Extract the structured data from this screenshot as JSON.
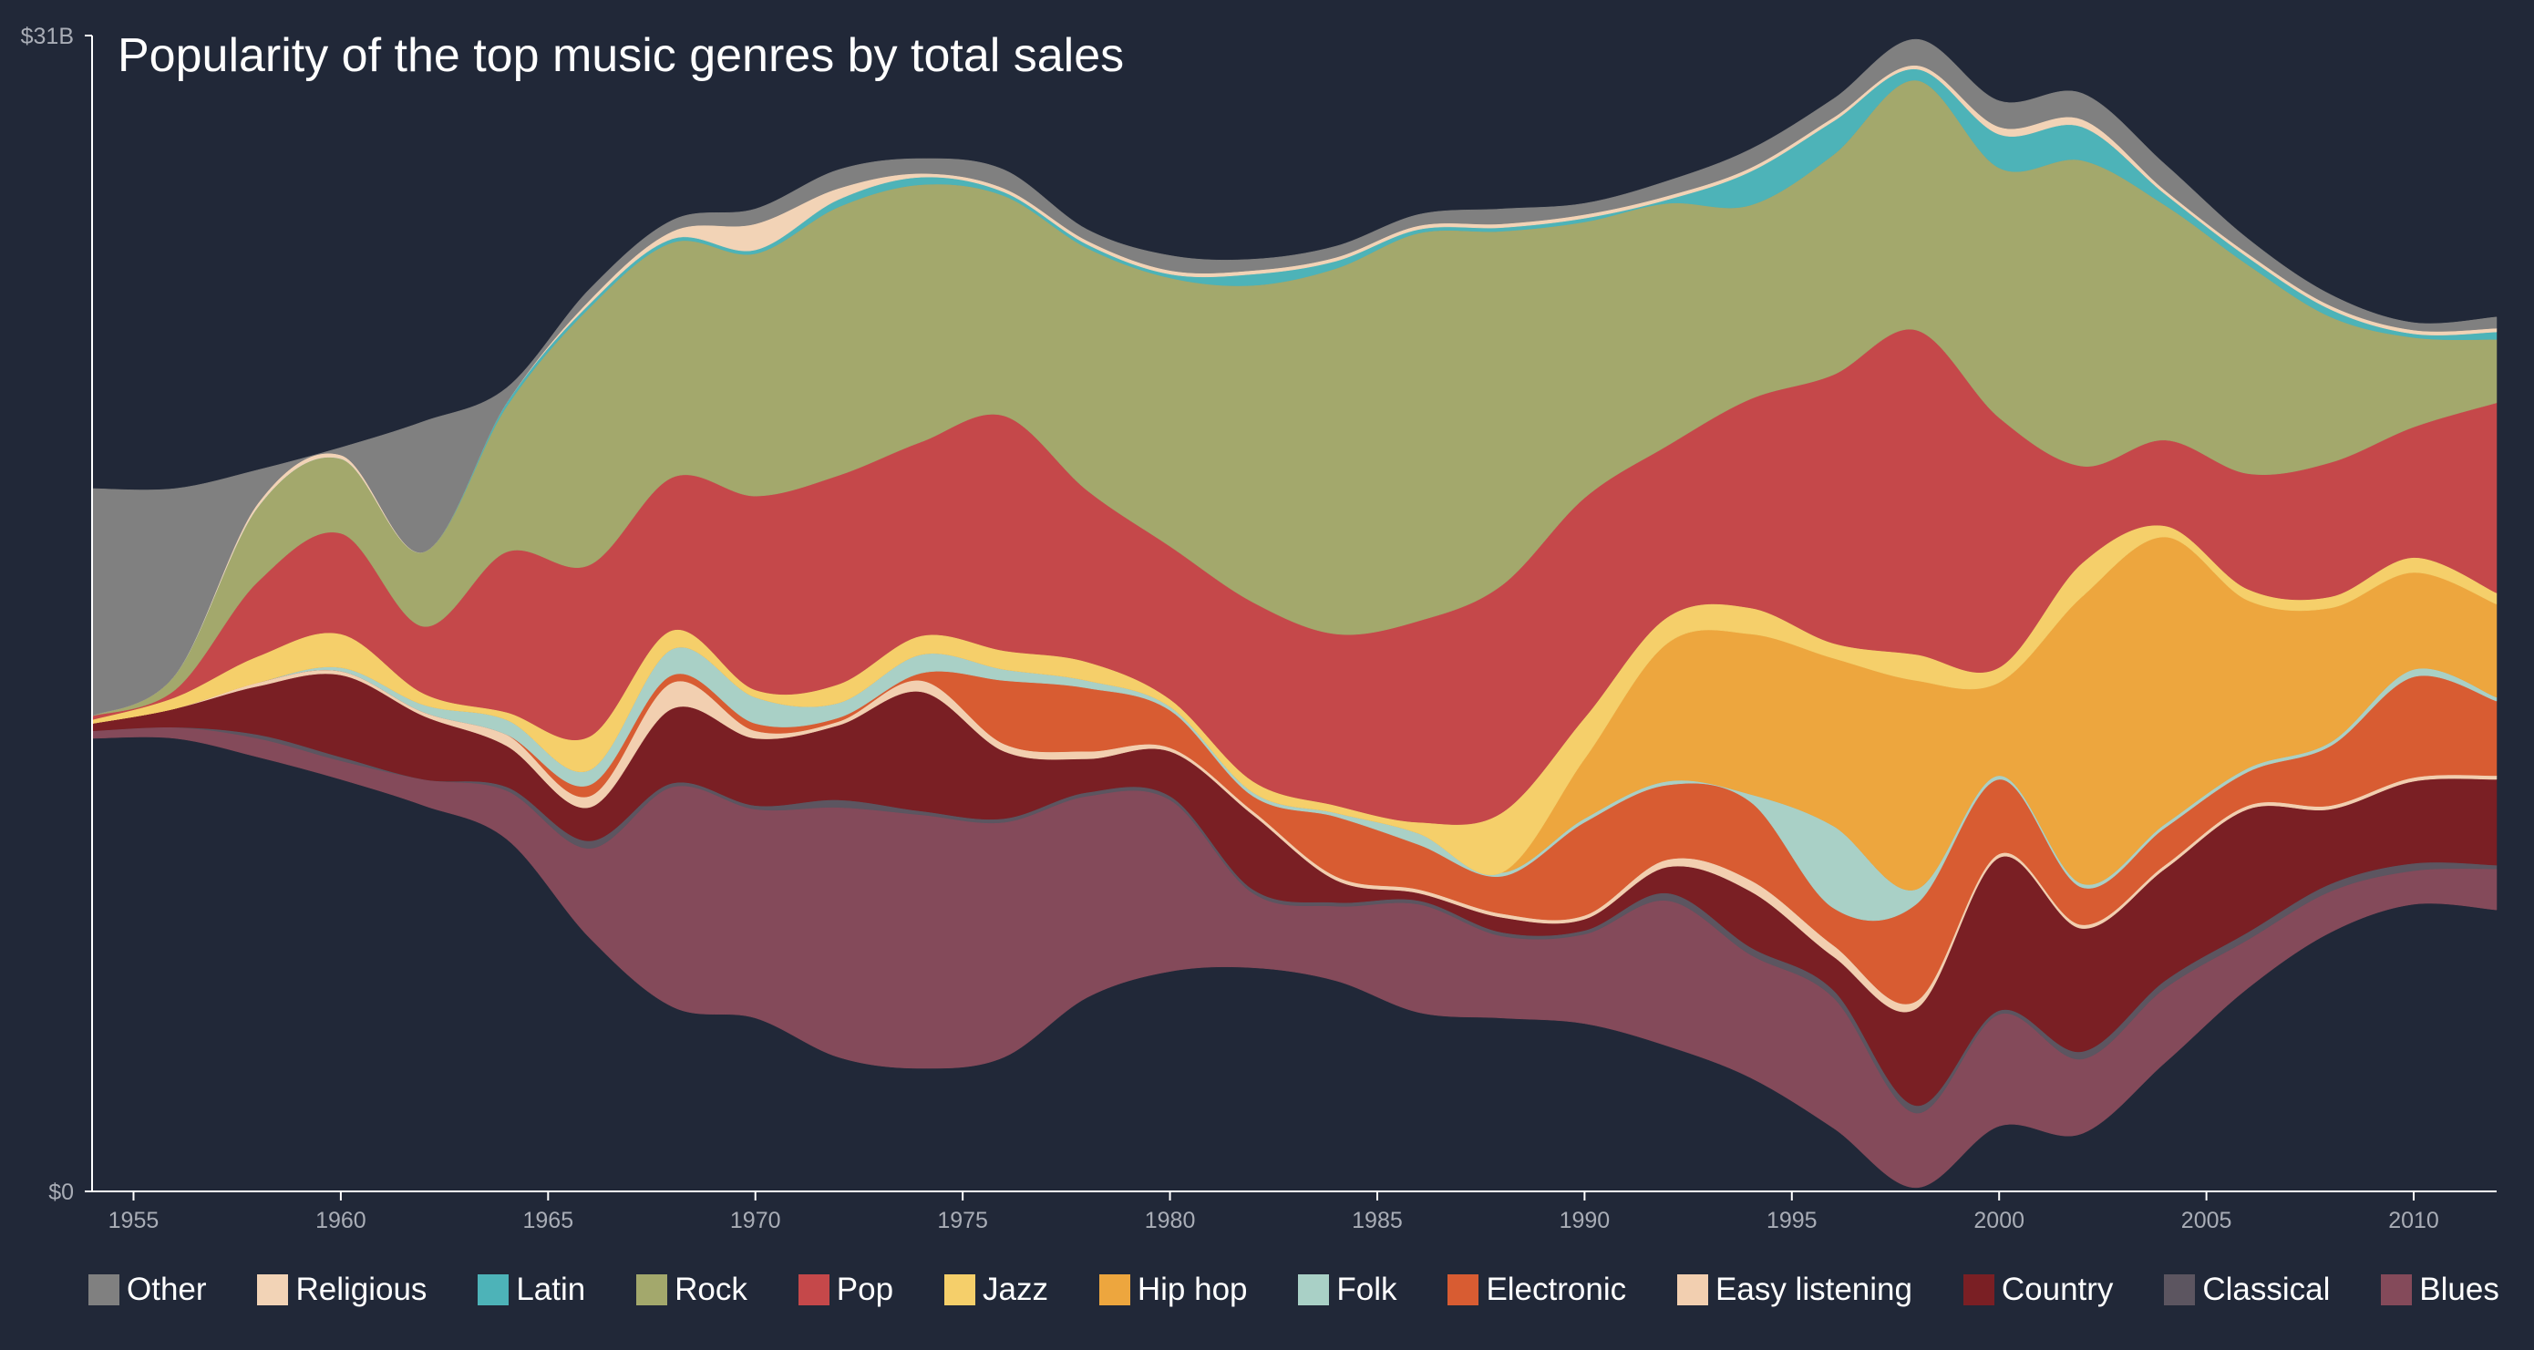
{
  "chart_data": {
    "type": "streamgraph",
    "title": "Popularity of the top music genres by total sales",
    "x": [
      1954,
      1956,
      1958,
      1960,
      1962,
      1964,
      1966,
      1968,
      1970,
      1972,
      1974,
      1976,
      1978,
      1980,
      1982,
      1984,
      1986,
      1988,
      1990,
      1992,
      1994,
      1996,
      1998,
      2000,
      2002,
      2004,
      2006,
      2008,
      2010,
      2012
    ],
    "xlim": [
      1954,
      2012
    ],
    "xticks": [
      1955,
      1960,
      1965,
      1970,
      1975,
      1980,
      1985,
      1990,
      1995,
      2000,
      2005,
      2010
    ],
    "ylim": [
      0,
      31
    ],
    "yticks": [
      {
        "value": 0,
        "label": "$0"
      },
      {
        "value": 31,
        "label": "$31B"
      }
    ],
    "series": [
      {
        "name": "Other",
        "color": "#808080",
        "values": [
          6.1,
          5.0,
          0.9,
          0.2,
          3.5,
          0.4,
          0.3,
          0.3,
          0.4,
          0.5,
          0.4,
          0.5,
          0.3,
          0.4,
          0.3,
          0.3,
          0.3,
          0.4,
          0.3,
          0.4,
          0.5,
          0.5,
          0.7,
          0.7,
          0.7,
          0.7,
          0.4,
          0.3,
          0.2,
          0.3
        ]
      },
      {
        "name": "Religious",
        "color": "#f2d3b6",
        "values": [
          0,
          0,
          0.1,
          0.1,
          0,
          0,
          0.1,
          0.2,
          0.7,
          0.3,
          0.1,
          0.1,
          0.1,
          0.1,
          0.1,
          0.1,
          0.1,
          0.1,
          0.1,
          0.1,
          0.1,
          0.1,
          0.1,
          0.2,
          0.2,
          0.1,
          0.1,
          0.1,
          0.1,
          0.1
        ]
      },
      {
        "name": "Latin",
        "color": "#4db3b8",
        "values": [
          0,
          0,
          0,
          0,
          0,
          0.1,
          0.1,
          0.1,
          0.1,
          0.2,
          0.2,
          0.1,
          0.1,
          0.1,
          0.3,
          0.2,
          0.1,
          0.1,
          0.1,
          0.1,
          0.9,
          0.9,
          0.3,
          0.9,
          0.9,
          0.3,
          0.2,
          0.2,
          0.1,
          0.2
        ]
      },
      {
        "name": "Rock",
        "color": "#a3a86c",
        "values": [
          0,
          0.4,
          2.0,
          2.0,
          2.0,
          3.9,
          6.9,
          6.3,
          6.5,
          7.2,
          6.9,
          5.9,
          6.5,
          7.2,
          8.5,
          9.8,
          10.4,
          9.5,
          7.4,
          6.5,
          5.2,
          5.9,
          6.7,
          6.7,
          8.2,
          6.3,
          5.6,
          3.9,
          2.4,
          1.7
        ]
      },
      {
        "name": "Pop",
        "color": "#c5484a",
        "values": [
          0.1,
          0.2,
          2.0,
          2.7,
          1.8,
          4.3,
          4.6,
          4.1,
          5.2,
          5.6,
          5.2,
          6.3,
          4.6,
          4.1,
          4.8,
          4.6,
          5.4,
          6.1,
          5.9,
          4.6,
          5.6,
          7.2,
          8.7,
          6.7,
          2.6,
          2.3,
          3.1,
          3.6,
          3.5,
          5.1
        ]
      },
      {
        "name": "Jazz",
        "color": "#f5cf6a",
        "values": [
          0.1,
          0.3,
          0.7,
          0.9,
          0.3,
          0.2,
          0.9,
          0.5,
          0.2,
          0.5,
          0.5,
          0.5,
          0.5,
          0.2,
          0.3,
          0.2,
          0.3,
          1.6,
          1.1,
          0.7,
          0.7,
          0.4,
          0.7,
          0.4,
          0.9,
          0.3,
          0.3,
          0.3,
          0.4,
          0.3
        ]
      },
      {
        "name": "Hip hop",
        "color": "#eda63e",
        "values": [
          0,
          0,
          0,
          0,
          0,
          0,
          0,
          0,
          0,
          0,
          0,
          0,
          0,
          0,
          0,
          0,
          0,
          0,
          1.6,
          3.7,
          4.3,
          4.5,
          5.6,
          2.5,
          7.7,
          7.7,
          4.5,
          3.6,
          2.6,
          2.5
        ]
      },
      {
        "name": "Folk",
        "color": "#a9d0c6",
        "values": [
          0,
          0,
          0,
          0.1,
          0.2,
          0.4,
          0.4,
          0.7,
          0.7,
          0.4,
          0.5,
          0.3,
          0.2,
          0.1,
          0.1,
          0.1,
          0.3,
          0.1,
          0.1,
          0.1,
          0.2,
          2.2,
          0.4,
          0.1,
          0.1,
          0.1,
          0.1,
          0.1,
          0.2,
          0.1
        ]
      },
      {
        "name": "Electronic",
        "color": "#d85c32",
        "values": [
          0,
          0,
          0,
          0,
          0,
          0,
          0.3,
          0.2,
          0.2,
          0.1,
          0.2,
          1.7,
          1.7,
          1.0,
          0.4,
          1.6,
          1.2,
          1.0,
          2.5,
          2.0,
          2.1,
          1.0,
          2.6,
          2.0,
          1.0,
          1.0,
          0.9,
          1.6,
          2.7,
          2.0
        ]
      },
      {
        "name": "Easy listening",
        "color": "#f2cfb0",
        "values": [
          0,
          0,
          0.1,
          0.1,
          0.1,
          0.3,
          0.3,
          0.7,
          0.2,
          0.1,
          0.3,
          0.2,
          0.2,
          0.1,
          0.1,
          0.1,
          0.1,
          0.1,
          0.1,
          0.2,
          0.3,
          0.3,
          0.2,
          0.1,
          0.1,
          0.1,
          0.1,
          0.1,
          0.1,
          0.1
        ]
      },
      {
        "name": "Country",
        "color": "#7a1f24",
        "values": [
          0.2,
          0.5,
          1.3,
          2.2,
          1.7,
          1.1,
          0.9,
          2.0,
          1.8,
          2.0,
          3.2,
          1.8,
          0.9,
          1.2,
          2.0,
          0.6,
          0.2,
          0.4,
          0.3,
          0.7,
          1.5,
          0.9,
          2.6,
          4.1,
          3.3,
          3.0,
          3.3,
          2.0,
          2.2,
          2.3
        ]
      },
      {
        "name": "Classical",
        "color": "#5c5560",
        "values": [
          0,
          0,
          0.1,
          0.1,
          0,
          0.1,
          0.2,
          0.1,
          0.1,
          0.2,
          0.1,
          0.1,
          0.1,
          0.1,
          0.1,
          0.1,
          0.1,
          0.1,
          0.1,
          0.2,
          0.2,
          0.2,
          0.2,
          0.1,
          0.2,
          0.2,
          0.2,
          0.2,
          0.2,
          0.1
        ]
      },
      {
        "name": "Blues",
        "color": "#844a5a",
        "values": [
          0.2,
          0.3,
          0.5,
          0.5,
          0.7,
          1.3,
          2.4,
          5.9,
          5.6,
          6.7,
          6.8,
          6.3,
          5.4,
          4.6,
          2.0,
          2.0,
          2.9,
          2.2,
          2.4,
          3.9,
          3.3,
          3.5,
          2.0,
          3.0,
          2.0,
          2.0,
          1.3,
          1.1,
          0.9,
          1.1
        ]
      }
    ]
  }
}
